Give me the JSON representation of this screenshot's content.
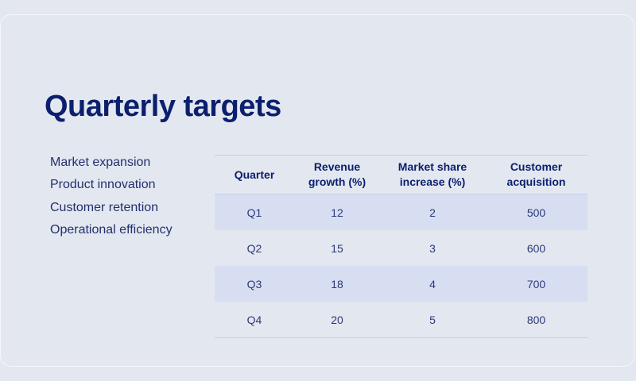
{
  "slide": {
    "title": "Quarterly targets",
    "bullets": [
      "Market expansion",
      "Product innovation",
      "Customer retention",
      "Operational efficiency"
    ],
    "table": {
      "headers": {
        "quarter": "Quarter",
        "revenue": "Revenue growth (%)",
        "market": "Market share increase (%)",
        "customer": "Customer acquisition"
      },
      "rows": [
        {
          "quarter": "Q1",
          "revenue": "12",
          "market": "2",
          "customer": "500"
        },
        {
          "quarter": "Q2",
          "revenue": "15",
          "market": "3",
          "customer": "600"
        },
        {
          "quarter": "Q3",
          "revenue": "18",
          "market": "4",
          "customer": "700"
        },
        {
          "quarter": "Q4",
          "revenue": "20",
          "market": "5",
          "customer": "800"
        }
      ]
    }
  }
}
